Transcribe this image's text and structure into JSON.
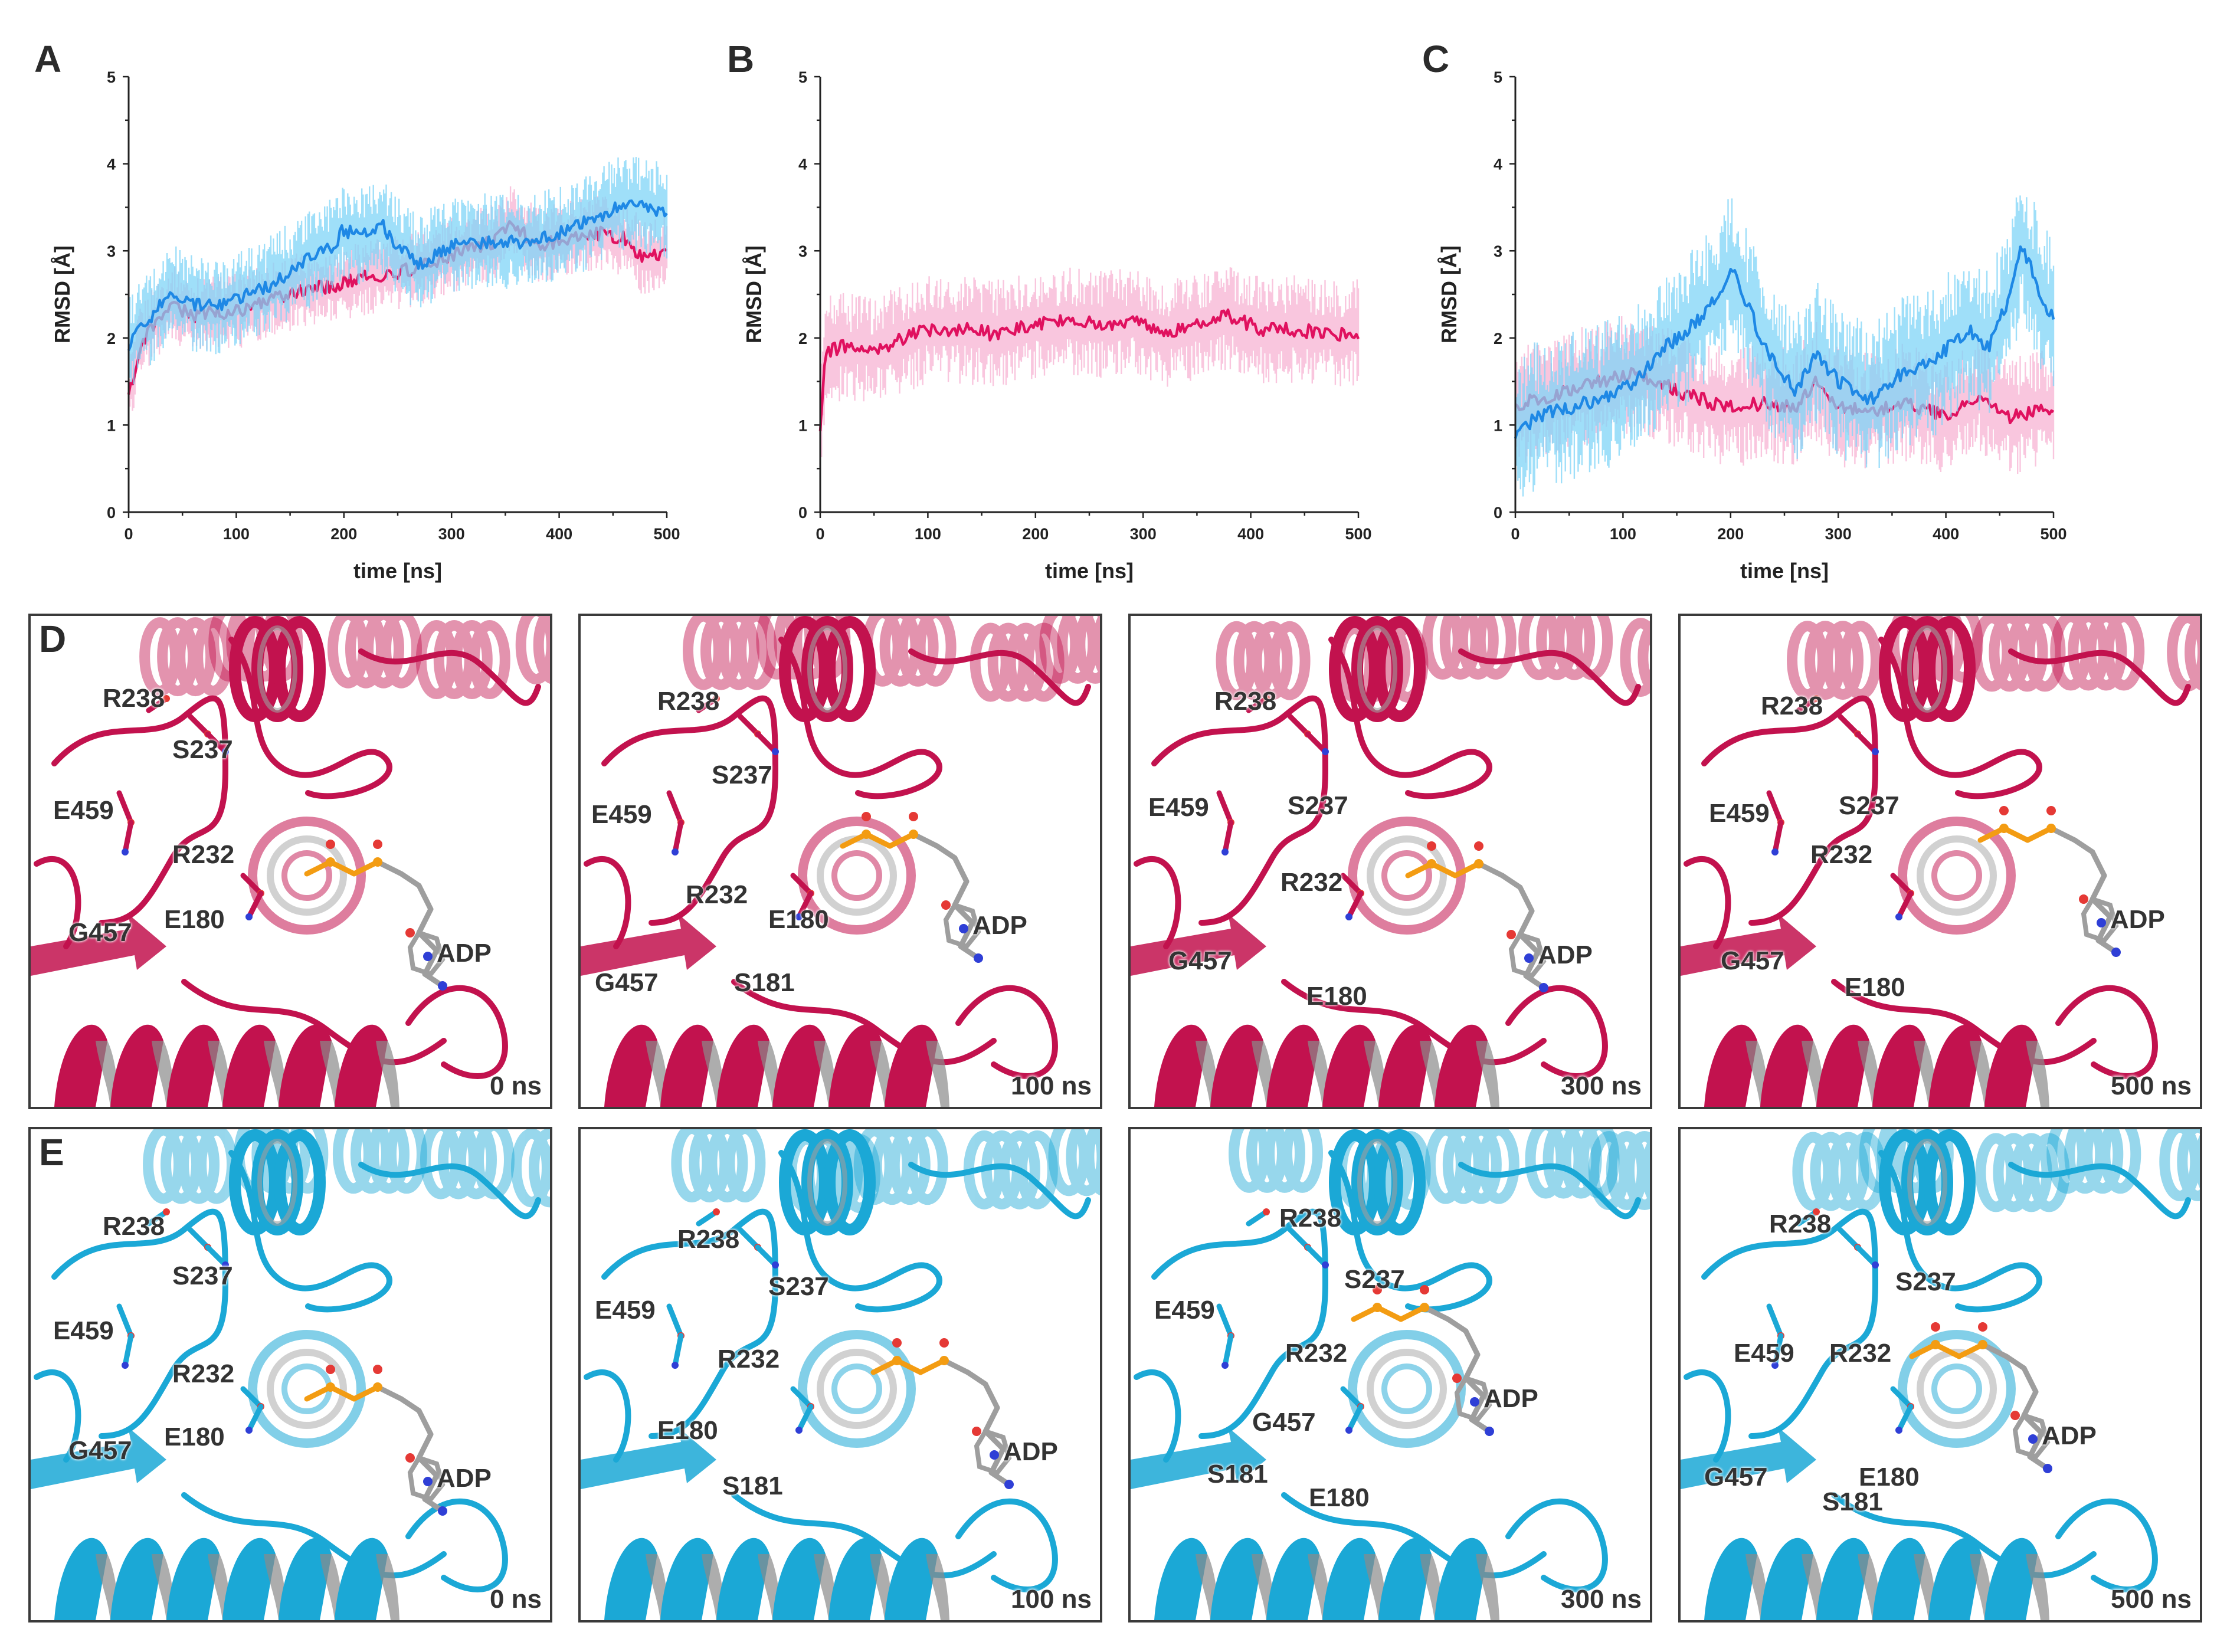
{
  "colors": {
    "magenta": "#e0115f",
    "magenta_light": "#f7b3d3",
    "blue": "#1e88e5",
    "blue_light": "#7fd4f7",
    "crimson_protein": "#c2124e",
    "cyan_protein": "#1ba8d6",
    "ligand_gray": "#9e9e9e",
    "phosphate_orange": "#f39c12"
  },
  "chart_data": [
    {
      "panel": "A",
      "type": "line",
      "xlabel": "time [ns]",
      "ylabel": "RMSD [Å]",
      "xlim": [
        0,
        500
      ],
      "ylim": [
        0,
        5
      ],
      "xticks": [
        "0",
        "100",
        "200",
        "300",
        "400",
        "500"
      ],
      "yticks": [
        "0",
        "1",
        "2",
        "3",
        "4",
        "5"
      ],
      "grid": false,
      "series": [
        {
          "color": "#e0115f",
          "band_color": "#f7b3d3",
          "band": 0.35,
          "x": [
            0,
            10,
            25,
            40,
            60,
            80,
            100,
            130,
            160,
            190,
            220,
            250,
            280,
            310,
            340,
            355,
            380,
            410,
            440,
            460,
            480,
            500
          ],
          "values": [
            1.3,
            1.9,
            2.2,
            2.4,
            2.25,
            2.3,
            2.3,
            2.45,
            2.55,
            2.6,
            2.7,
            2.75,
            2.85,
            3.0,
            3.1,
            3.35,
            3.05,
            3.15,
            3.2,
            3.15,
            2.9,
            3.0
          ]
        },
        {
          "color": "#1e88e5",
          "band_color": "#7fd4f7",
          "band": 0.45,
          "x": [
            0,
            10,
            25,
            40,
            60,
            80,
            100,
            130,
            160,
            190,
            200,
            215,
            235,
            250,
            270,
            290,
            310,
            340,
            370,
            400,
            430,
            460,
            480,
            500
          ],
          "values": [
            1.9,
            2.1,
            2.3,
            2.55,
            2.4,
            2.35,
            2.45,
            2.6,
            2.85,
            3.05,
            3.25,
            3.15,
            3.3,
            3.05,
            2.85,
            3.0,
            3.1,
            3.1,
            3.1,
            3.2,
            3.35,
            3.55,
            3.5,
            3.45
          ]
        }
      ]
    },
    {
      "panel": "B",
      "type": "line",
      "xlabel": "time [ns]",
      "ylabel": "RMSD [Å]",
      "xlim": [
        0,
        500
      ],
      "ylim": [
        0,
        5
      ],
      "xticks": [
        "0",
        "100",
        "200",
        "300",
        "400",
        "500"
      ],
      "yticks": [
        "0",
        "1",
        "2",
        "3",
        "4",
        "5"
      ],
      "grid": false,
      "series": [
        {
          "color": "#e0115f",
          "band_color": "#f7b3d3",
          "band": 0.5,
          "x": [
            0,
            5,
            20,
            50,
            80,
            100,
            130,
            160,
            200,
            230,
            260,
            290,
            320,
            350,
            380,
            410,
            440,
            470,
            500
          ],
          "values": [
            1.0,
            1.85,
            1.9,
            1.85,
            2.0,
            2.1,
            2.1,
            2.05,
            2.15,
            2.2,
            2.15,
            2.2,
            2.05,
            2.15,
            2.25,
            2.1,
            2.1,
            2.05,
            2.05
          ]
        }
      ]
    },
    {
      "panel": "C",
      "type": "line",
      "xlabel": "time [ns]",
      "ylabel": "RMSD [Å]",
      "xlim": [
        0,
        500
      ],
      "ylim": [
        0,
        5
      ],
      "xticks": [
        "0",
        "100",
        "200",
        "300",
        "400",
        "500"
      ],
      "yticks": [
        "0",
        "1",
        "2",
        "3",
        "4",
        "5"
      ],
      "grid": false,
      "series": [
        {
          "color": "#e0115f",
          "band_color": "#f7b3d3",
          "band": 0.55,
          "x": [
            0,
            20,
            50,
            80,
            110,
            140,
            170,
            200,
            230,
            260,
            280,
            300,
            330,
            360,
            400,
            430,
            460,
            480,
            500
          ],
          "values": [
            1.2,
            1.3,
            1.4,
            1.5,
            1.6,
            1.45,
            1.3,
            1.2,
            1.25,
            1.2,
            1.5,
            1.2,
            1.15,
            1.25,
            1.1,
            1.35,
            1.1,
            1.15,
            1.2
          ]
        },
        {
          "color": "#1e88e5",
          "band_color": "#7fd4f7",
          "band": 0.7,
          "x": [
            0,
            20,
            50,
            80,
            110,
            140,
            170,
            190,
            200,
            215,
            235,
            260,
            280,
            300,
            330,
            360,
            390,
            420,
            440,
            460,
            470,
            485,
            500
          ],
          "values": [
            0.9,
            1.1,
            1.2,
            1.3,
            1.5,
            1.9,
            2.2,
            2.5,
            2.85,
            2.4,
            1.8,
            1.4,
            1.8,
            1.5,
            1.3,
            1.6,
            1.75,
            2.1,
            1.9,
            2.5,
            3.1,
            2.6,
            2.2
          ]
        }
      ]
    }
  ],
  "panels": {
    "D": {
      "letter": "D",
      "frames": [
        {
          "time": "0 ns",
          "labels": [
            "R238",
            "S237",
            "E459",
            "R232",
            "E180",
            "G457",
            "ADP"
          ]
        },
        {
          "time": "100 ns",
          "labels": [
            "R238",
            "E459",
            "S237",
            "R232",
            "E180",
            "ADP",
            "G457",
            "S181"
          ]
        },
        {
          "time": "300 ns",
          "labels": [
            "R238",
            "E459",
            "S237",
            "R232",
            "G457",
            "E180",
            "ADP"
          ]
        },
        {
          "time": "500 ns",
          "labels": [
            "R238",
            "E459",
            "S237",
            "R232",
            "G457",
            "E180",
            "ADP"
          ]
        }
      ]
    },
    "E": {
      "letter": "E",
      "frames": [
        {
          "time": "0 ns",
          "labels": [
            "R238",
            "S237",
            "E459",
            "R232",
            "E180",
            "G457",
            "ADP"
          ]
        },
        {
          "time": "100 ns",
          "labels": [
            "R238",
            "S237",
            "E459",
            "R232",
            "E180",
            "ADP",
            "S181"
          ]
        },
        {
          "time": "300 ns",
          "labels": [
            "R238",
            "S237",
            "E459",
            "R232",
            "ADP",
            "G457",
            "S181",
            "E180"
          ]
        },
        {
          "time": "500 ns",
          "labels": [
            "R238",
            "S237",
            "E459",
            "R232",
            "ADP",
            "G457",
            "E180",
            "S181"
          ]
        }
      ]
    }
  }
}
